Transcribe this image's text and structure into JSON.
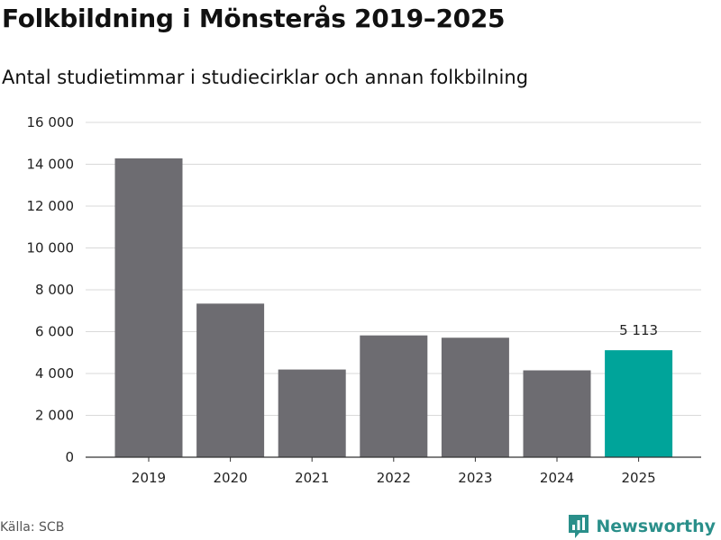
{
  "colors": {
    "bar": "#6d6c71",
    "highlight": "#00a49a",
    "grid": "#d9d9d9",
    "axis": "#333333",
    "brand": "#2a8f8a"
  },
  "source": "Källa: SCB",
  "brand": {
    "name": "Newsworthy",
    "logo_icon": "bar-chart-pin-icon"
  },
  "chart_data": {
    "type": "bar",
    "title": "Folkbildning i Mönsterås 2019–2025",
    "subtitle": "Antal studietimmar i studiecirklar och annan folkbilning",
    "categories": [
      "2019",
      "2020",
      "2021",
      "2022",
      "2023",
      "2024",
      "2025"
    ],
    "values": [
      14280,
      7340,
      4190,
      5820,
      5710,
      4150,
      5113
    ],
    "highlight_index": 6,
    "data_labels": [
      {
        "index": 6,
        "text": "5 113"
      }
    ],
    "ylim": [
      0,
      16000
    ],
    "yticks": [
      0,
      2000,
      4000,
      6000,
      8000,
      10000,
      12000,
      14000,
      16000
    ],
    "ytick_labels": [
      "0",
      "2 000",
      "4 000",
      "6 000",
      "8 000",
      "10 000",
      "12 000",
      "14 000",
      "16 000"
    ],
    "xlabel": "",
    "ylabel": "",
    "grid": true
  }
}
